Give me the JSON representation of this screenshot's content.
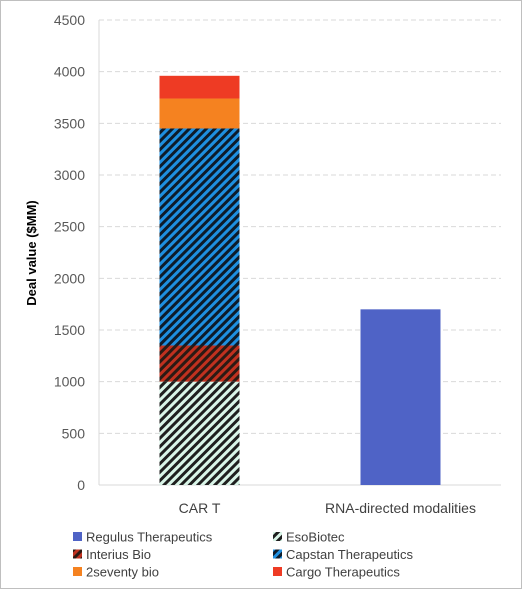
{
  "chart_data": {
    "type": "bar",
    "stacked": true,
    "title": "",
    "xlabel": "",
    "ylabel": "Deal value ($MM)",
    "ylim": [
      0,
      4500
    ],
    "yticks": [
      0,
      500,
      1000,
      1500,
      2000,
      2500,
      3000,
      3500,
      4000,
      4500
    ],
    "grid": "horizontal dashed",
    "legend_position": "bottom",
    "categories": [
      "CAR T",
      "RNA-directed modalities"
    ],
    "series": [
      {
        "name": "Regulus Therapeutics",
        "values": [
          0,
          1700
        ],
        "color": "#4f63c6",
        "pattern": "solid"
      },
      {
        "name": "EsoBiotec",
        "values": [
          1000,
          0
        ],
        "color": "#1f1f1f",
        "pattern_bg": "#d9f5e8",
        "pattern": "diagonal-stripes"
      },
      {
        "name": "Interius Bio",
        "values": [
          350,
          0
        ],
        "color": "#2b1a14",
        "pattern_bg": "#c0311f",
        "pattern": "diagonal-stripes"
      },
      {
        "name": "Capstan Therapeutics",
        "values": [
          2100,
          0
        ],
        "color": "#0d1b2a",
        "pattern_bg": "#1e8fe0",
        "pattern": "diagonal-stripes"
      },
      {
        "name": "2seventy bio",
        "values": [
          290,
          0
        ],
        "color": "#f58220",
        "pattern": "solid"
      },
      {
        "name": "Cargo Therapeutics",
        "values": [
          220,
          0
        ],
        "color": "#ee3b24",
        "pattern": "solid"
      }
    ]
  }
}
